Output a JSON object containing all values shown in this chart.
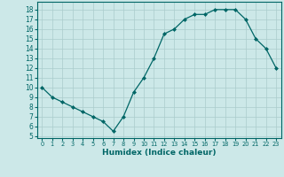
{
  "x": [
    0,
    1,
    2,
    3,
    4,
    5,
    6,
    7,
    8,
    9,
    10,
    11,
    12,
    13,
    14,
    15,
    16,
    17,
    18,
    19,
    20,
    21,
    22,
    23
  ],
  "y": [
    10,
    9,
    8.5,
    8,
    7.5,
    7,
    6.5,
    5.5,
    7,
    9.5,
    11,
    13,
    15.5,
    16,
    17,
    17.5,
    17.5,
    18,
    18,
    18,
    17,
    15,
    14,
    12
  ],
  "xlabel": "Humidex (Indice chaleur)",
  "xlim": [
    -0.5,
    23.5
  ],
  "ylim": [
    4.8,
    18.8
  ],
  "yticks": [
    5,
    6,
    7,
    8,
    9,
    10,
    11,
    12,
    13,
    14,
    15,
    16,
    17,
    18
  ],
  "xticks": [
    0,
    1,
    2,
    3,
    4,
    5,
    6,
    7,
    8,
    9,
    10,
    11,
    12,
    13,
    14,
    15,
    16,
    17,
    18,
    19,
    20,
    21,
    22,
    23
  ],
  "line_color": "#006666",
  "bg_color": "#cce8e8",
  "grid_color": "#aacccc"
}
